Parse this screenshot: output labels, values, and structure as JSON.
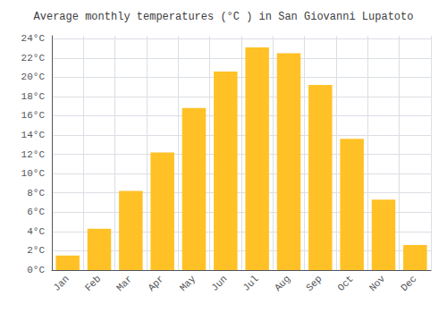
{
  "chart_data": {
    "type": "bar",
    "title": "Average monthly temperatures (°C ) in San Giovanni Lupatoto",
    "categories": [
      "Jan",
      "Feb",
      "Mar",
      "Apr",
      "May",
      "Jun",
      "Jul",
      "Aug",
      "Sep",
      "Oct",
      "Nov",
      "Dec"
    ],
    "values": [
      1.5,
      4.3,
      8.2,
      12.2,
      16.8,
      20.6,
      23.1,
      22.5,
      19.2,
      13.6,
      7.3,
      2.6
    ],
    "color": "#FFC125",
    "ylim": [
      0,
      24.3
    ],
    "yticks": [
      {
        "value": 0,
        "label": "0°C"
      },
      {
        "value": 2,
        "label": "2°C"
      },
      {
        "value": 4,
        "label": "4°C"
      },
      {
        "value": 6,
        "label": "6°C"
      },
      {
        "value": 8,
        "label": "8°C"
      },
      {
        "value": 10,
        "label": "10°C"
      },
      {
        "value": 12,
        "label": "12°C"
      },
      {
        "value": 14,
        "label": "14°C"
      },
      {
        "value": 16,
        "label": "16°C"
      },
      {
        "value": 18,
        "label": "18°C"
      },
      {
        "value": 20,
        "label": "20°C"
      },
      {
        "value": 22,
        "label": "22°C"
      },
      {
        "value": 24,
        "label": "24°C"
      }
    ],
    "grid": true
  }
}
